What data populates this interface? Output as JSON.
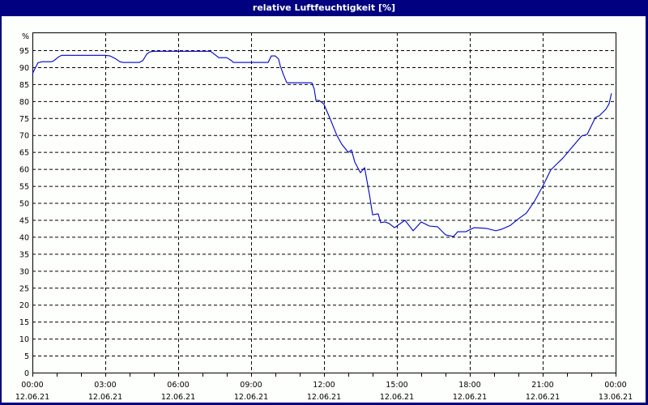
{
  "window": {
    "title": "relative Luftfeuchtigkeit [%]"
  },
  "colors": {
    "frame": "#000080",
    "background": "#fcfffc",
    "axis": "#000000",
    "grid": "#000000",
    "series": "#0000c8"
  },
  "chart_data": {
    "type": "line",
    "title": "relative Luftfeuchtigkeit [%]",
    "xlabel": "",
    "ylabel": "%",
    "ylim": [
      0,
      95
    ],
    "xlim_hours": [
      0,
      24
    ],
    "grid": true,
    "grid_style": "dashed",
    "legend": null,
    "y_ticks": [
      0,
      5,
      10,
      15,
      20,
      25,
      30,
      35,
      40,
      45,
      50,
      55,
      60,
      65,
      70,
      75,
      80,
      85,
      90,
      95
    ],
    "y_unit_label": "%",
    "x_ticks": [
      {
        "hour": 0,
        "time": "00:00",
        "date": "12.06.21"
      },
      {
        "hour": 3,
        "time": "03:00",
        "date": "12.06.21"
      },
      {
        "hour": 6,
        "time": "06:00",
        "date": "12.06.21"
      },
      {
        "hour": 9,
        "time": "09:00",
        "date": "12.06.21"
      },
      {
        "hour": 12,
        "time": "12:00",
        "date": "12.06.21"
      },
      {
        "hour": 15,
        "time": "15:00",
        "date": "12.06.21"
      },
      {
        "hour": 18,
        "time": "18:00",
        "date": "12.06.21"
      },
      {
        "hour": 21,
        "time": "21:00",
        "date": "12.06.21"
      },
      {
        "hour": 24,
        "time": "00:00",
        "date": "13.06.21"
      }
    ],
    "minor_x_tick_interval_hours": 1,
    "series": [
      {
        "name": "relative Luftfeuchtigkeit",
        "points": [
          [
            0.0,
            88.0
          ],
          [
            0.1,
            89.5
          ],
          [
            0.23,
            91.3
          ],
          [
            0.4,
            91.6
          ],
          [
            0.8,
            91.6
          ],
          [
            0.9,
            92.0
          ],
          [
            1.07,
            93.0
          ],
          [
            1.2,
            93.5
          ],
          [
            2.0,
            93.5
          ],
          [
            3.0,
            93.5
          ],
          [
            3.2,
            93.3
          ],
          [
            3.4,
            92.6
          ],
          [
            3.6,
            91.6
          ],
          [
            3.73,
            91.4
          ],
          [
            4.0,
            91.4
          ],
          [
            4.4,
            91.4
          ],
          [
            4.55,
            92.0
          ],
          [
            4.7,
            93.8
          ],
          [
            4.83,
            94.5
          ],
          [
            5.0,
            94.7
          ],
          [
            6.0,
            94.7
          ],
          [
            7.0,
            94.7
          ],
          [
            7.33,
            94.7
          ],
          [
            7.55,
            93.5
          ],
          [
            7.67,
            92.8
          ],
          [
            8.0,
            92.8
          ],
          [
            8.2,
            91.9
          ],
          [
            8.27,
            91.4
          ],
          [
            9.0,
            91.4
          ],
          [
            9.7,
            91.4
          ],
          [
            9.83,
            93.3
          ],
          [
            10.0,
            93.3
          ],
          [
            10.13,
            92.4
          ],
          [
            10.2,
            90.4
          ],
          [
            10.33,
            87.8
          ],
          [
            10.47,
            85.4
          ],
          [
            11.0,
            85.4
          ],
          [
            11.5,
            85.4
          ],
          [
            11.6,
            83.5
          ],
          [
            11.67,
            80.2
          ],
          [
            11.8,
            80.2
          ],
          [
            11.95,
            79.4
          ],
          [
            12.0,
            79.0
          ],
          [
            12.23,
            75.2
          ],
          [
            12.53,
            69.9
          ],
          [
            12.73,
            67.3
          ],
          [
            13.0,
            64.9
          ],
          [
            13.13,
            65.6
          ],
          [
            13.27,
            62.0
          ],
          [
            13.5,
            58.9
          ],
          [
            13.67,
            60.4
          ],
          [
            13.87,
            52.5
          ],
          [
            14.0,
            46.5
          ],
          [
            14.23,
            46.8
          ],
          [
            14.33,
            44.2
          ],
          [
            14.5,
            44.4
          ],
          [
            14.67,
            44.0
          ],
          [
            14.9,
            42.7
          ],
          [
            15.0,
            43.2
          ],
          [
            15.33,
            44.9
          ],
          [
            15.67,
            41.8
          ],
          [
            16.0,
            44.4
          ],
          [
            16.33,
            43.2
          ],
          [
            16.67,
            43.0
          ],
          [
            17.0,
            40.6
          ],
          [
            17.33,
            40.1
          ],
          [
            17.5,
            41.5
          ],
          [
            17.83,
            41.5
          ],
          [
            18.17,
            42.7
          ],
          [
            18.67,
            42.5
          ],
          [
            19.07,
            41.8
          ],
          [
            19.33,
            42.3
          ],
          [
            19.67,
            43.4
          ],
          [
            20.0,
            45.3
          ],
          [
            20.33,
            47.0
          ],
          [
            20.67,
            50.6
          ],
          [
            21.0,
            54.9
          ],
          [
            21.33,
            59.7
          ],
          [
            21.6,
            61.6
          ],
          [
            21.83,
            63.2
          ],
          [
            22.17,
            66.1
          ],
          [
            22.6,
            69.7
          ],
          [
            22.83,
            70.2
          ],
          [
            23.17,
            75.2
          ],
          [
            23.33,
            75.7
          ],
          [
            23.6,
            77.6
          ],
          [
            23.73,
            79.2
          ],
          [
            23.83,
            82.3
          ]
        ]
      }
    ]
  }
}
